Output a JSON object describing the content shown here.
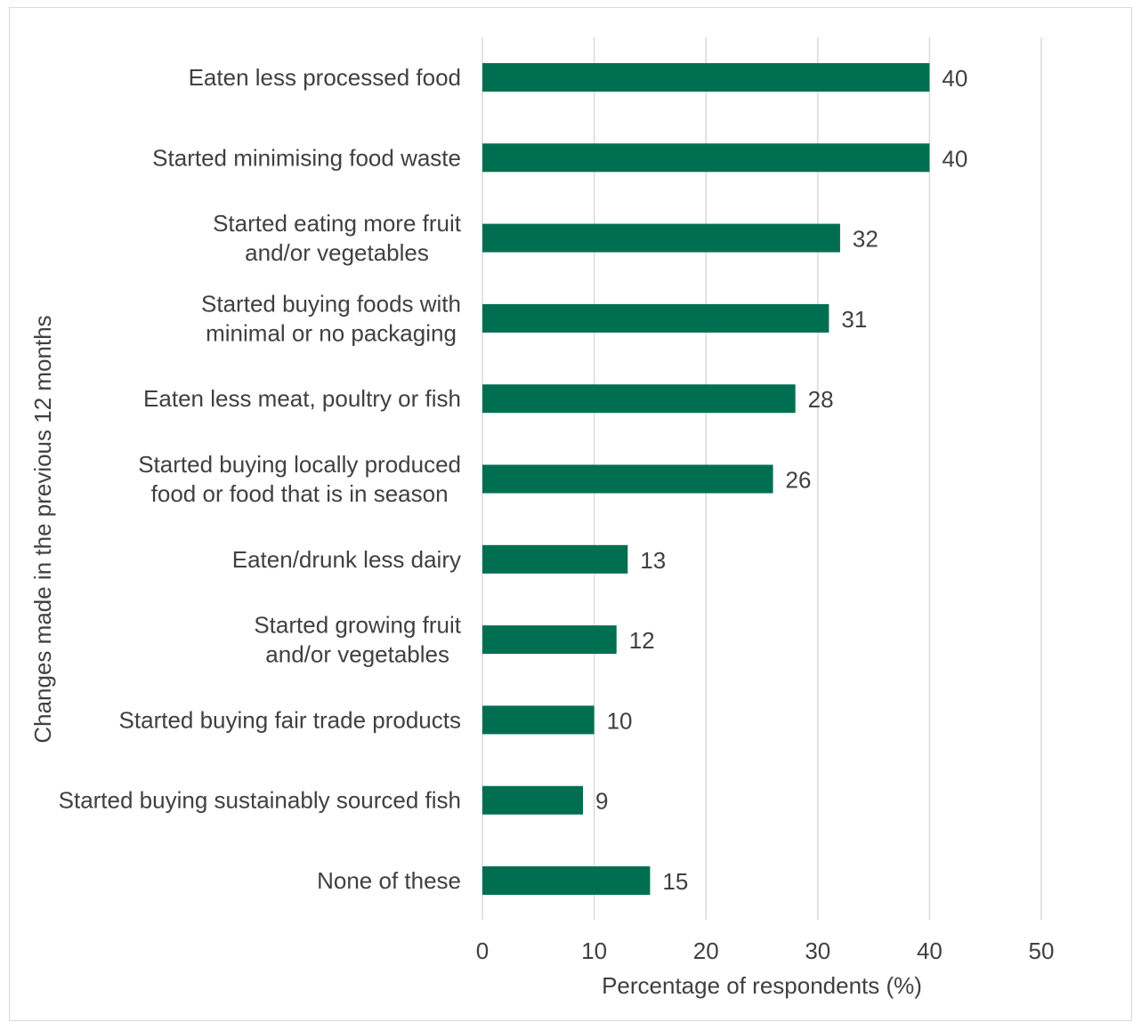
{
  "chart_data": {
    "type": "bar",
    "orientation": "horizontal",
    "categories": [
      [
        "Eaten less processed food"
      ],
      [
        "Started minimising food waste"
      ],
      [
        "Started eating more fruit",
        "and/or vegetables"
      ],
      [
        "Started buying foods with",
        "minimal or no packaging"
      ],
      [
        "Eaten less meat, poultry or fish"
      ],
      [
        "Started buying locally produced",
        "food or food that is in season"
      ],
      [
        "Eaten/drunk less dairy"
      ],
      [
        "Started growing fruit",
        "and/or vegetables"
      ],
      [
        "Started buying fair trade products"
      ],
      [
        "Started buying sustainably sourced fish"
      ],
      [
        "None of these"
      ]
    ],
    "values": [
      40,
      40,
      32,
      31,
      28,
      26,
      13,
      12,
      10,
      9,
      15
    ],
    "xlabel": "Percentage of respondents (%)",
    "ylabel": "Changes made in the previous 12 months",
    "xlim": [
      0,
      50
    ],
    "xticks": [
      0,
      10,
      20,
      30,
      40,
      50
    ],
    "grid": "vertical",
    "data_labels": true,
    "bar_color": "#006F51",
    "text_color": "#404040",
    "grid_color": "#D9D9D9"
  }
}
